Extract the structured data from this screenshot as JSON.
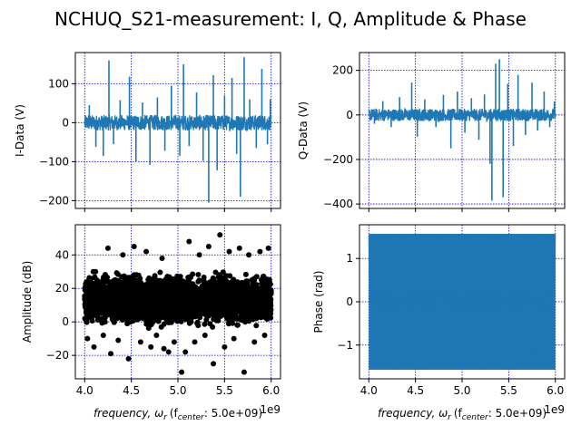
{
  "figure": {
    "suptitle": "NCHUQ_S21-measurement: I, Q, Amplitude & Phase",
    "xlabel_prefix": "frequency, ω",
    "xlabel_sub": "r",
    "xlabel_center": "(f",
    "xlabel_center_sub": "center",
    "xlabel_center_value": ":  5.0e+09)",
    "x_offset_label": "1e9",
    "colors": {
      "line": "#1f77b4",
      "scatter": "#000000",
      "grid": "#0000cc"
    }
  },
  "chart_data": [
    {
      "id": "i-data",
      "type": "line",
      "ylabel": "I-Data (V)",
      "xlim": [
        3.9,
        6.1
      ],
      "ylim": [
        -220,
        180
      ],
      "xticks": [
        4.0,
        4.5,
        5.0,
        5.5,
        6.0
      ],
      "xtick_labels": [
        "",
        "",
        "",
        "",
        ""
      ],
      "yticks": [
        100,
        0,
        -100,
        -200
      ],
      "ytick_labels": [
        "100",
        "0",
        "−100",
        "−200"
      ],
      "grid": true,
      "noise_band": [
        -20,
        20
      ],
      "spikes": [
        [
          4.05,
          45
        ],
        [
          4.12,
          -62
        ],
        [
          4.2,
          -85
        ],
        [
          4.26,
          160
        ],
        [
          4.31,
          -55
        ],
        [
          4.38,
          58
        ],
        [
          4.48,
          118
        ],
        [
          4.55,
          -100
        ],
        [
          4.62,
          52
        ],
        [
          4.7,
          -108
        ],
        [
          4.78,
          65
        ],
        [
          4.86,
          -72
        ],
        [
          4.93,
          95
        ],
        [
          5.02,
          -85
        ],
        [
          5.06,
          150
        ],
        [
          5.12,
          -60
        ],
        [
          5.2,
          78
        ],
        [
          5.27,
          -98
        ],
        [
          5.33,
          -205
        ],
        [
          5.38,
          122
        ],
        [
          5.42,
          -122
        ],
        [
          5.5,
          70
        ],
        [
          5.58,
          115
        ],
        [
          5.63,
          -80
        ],
        [
          5.67,
          -190
        ],
        [
          5.71,
          168
        ],
        [
          5.77,
          60
        ],
        [
          5.84,
          -65
        ],
        [
          5.9,
          138
        ],
        [
          5.96,
          -55
        ],
        [
          5.99,
          60
        ]
      ]
    },
    {
      "id": "q-data",
      "type": "line",
      "ylabel": "Q-Data (V)",
      "xlim": [
        3.9,
        6.1
      ],
      "ylim": [
        -420,
        280
      ],
      "xticks": [
        4.0,
        4.5,
        5.0,
        5.5,
        6.0
      ],
      "xtick_labels": [
        "",
        "",
        "",
        "",
        ""
      ],
      "yticks": [
        200,
        0,
        -200,
        -400
      ],
      "ytick_labels": [
        "200",
        "0",
        "−200",
        "−400"
      ],
      "grid": true,
      "noise_band": [
        -28,
        28
      ],
      "spikes": [
        [
          4.06,
          -40
        ],
        [
          4.15,
          62
        ],
        [
          4.24,
          -55
        ],
        [
          4.33,
          80
        ],
        [
          4.46,
          145
        ],
        [
          4.52,
          -98
        ],
        [
          4.6,
          70
        ],
        [
          4.72,
          -55
        ],
        [
          4.8,
          90
        ],
        [
          4.88,
          -150
        ],
        [
          4.95,
          105
        ],
        [
          5.03,
          -80
        ],
        [
          5.1,
          75
        ],
        [
          5.18,
          -112
        ],
        [
          5.24,
          92
        ],
        [
          5.3,
          -220
        ],
        [
          5.32,
          -385
        ],
        [
          5.36,
          230
        ],
        [
          5.4,
          250
        ],
        [
          5.44,
          -370
        ],
        [
          5.49,
          140
        ],
        [
          5.55,
          -140
        ],
        [
          5.6,
          180
        ],
        [
          5.68,
          -90
        ],
        [
          5.75,
          145
        ],
        [
          5.81,
          -70
        ],
        [
          5.88,
          105
        ],
        [
          5.94,
          -55
        ],
        [
          5.99,
          60
        ]
      ]
    },
    {
      "id": "amplitude",
      "type": "scatter",
      "ylabel": "Amplitude (dB)",
      "xlim": [
        3.9,
        6.1
      ],
      "ylim": [
        -34,
        58
      ],
      "xticks": [
        4.0,
        4.5,
        5.0,
        5.5,
        6.0
      ],
      "xtick_labels": [
        "4.0",
        "4.5",
        "5.0",
        "5.5",
        "6.0"
      ],
      "yticks": [
        40,
        20,
        0,
        -20
      ],
      "ytick_labels": [
        "40",
        "20",
        "0",
        "−20"
      ],
      "grid": true,
      "dense_band": [
        -2,
        30
      ],
      "outliers": [
        [
          4.03,
          -10
        ],
        [
          4.1,
          -15
        ],
        [
          4.2,
          -8
        ],
        [
          4.28,
          -19
        ],
        [
          4.36,
          -11
        ],
        [
          4.41,
          40
        ],
        [
          4.47,
          -22
        ],
        [
          4.53,
          45
        ],
        [
          4.6,
          -12
        ],
        [
          4.66,
          42
        ],
        [
          4.71,
          -15
        ],
        [
          4.77,
          -8
        ],
        [
          4.83,
          38
        ],
        [
          4.9,
          -18
        ],
        [
          4.96,
          -12
        ],
        [
          5.04,
          -30
        ],
        [
          5.08,
          -18
        ],
        [
          5.12,
          48
        ],
        [
          5.18,
          -12
        ],
        [
          5.23,
          40
        ],
        [
          5.29,
          -8
        ],
        [
          5.33,
          45
        ],
        [
          5.38,
          -25
        ],
        [
          5.45,
          52
        ],
        [
          5.5,
          -15
        ],
        [
          5.55,
          42
        ],
        [
          5.6,
          -10
        ],
        [
          5.66,
          44
        ],
        [
          5.71,
          -30
        ],
        [
          5.76,
          40
        ],
        [
          5.82,
          -12
        ],
        [
          5.88,
          42
        ],
        [
          5.93,
          -8
        ],
        [
          5.97,
          44
        ],
        [
          4.25,
          44
        ],
        [
          4.85,
          -16
        ]
      ]
    },
    {
      "id": "phase",
      "type": "line",
      "ylabel": "Phase (rad)",
      "xlim": [
        3.9,
        6.1
      ],
      "ylim": [
        -1.78,
        1.78
      ],
      "xticks": [
        4.0,
        4.5,
        5.0,
        5.5,
        6.0
      ],
      "xtick_labels": [
        "4.0",
        "4.5",
        "5.0",
        "5.5",
        "6.0"
      ],
      "yticks": [
        1,
        0,
        -1
      ],
      "ytick_labels": [
        "1",
        "0",
        "−1"
      ],
      "grid": true,
      "band": [
        -1.57,
        1.57
      ]
    }
  ]
}
